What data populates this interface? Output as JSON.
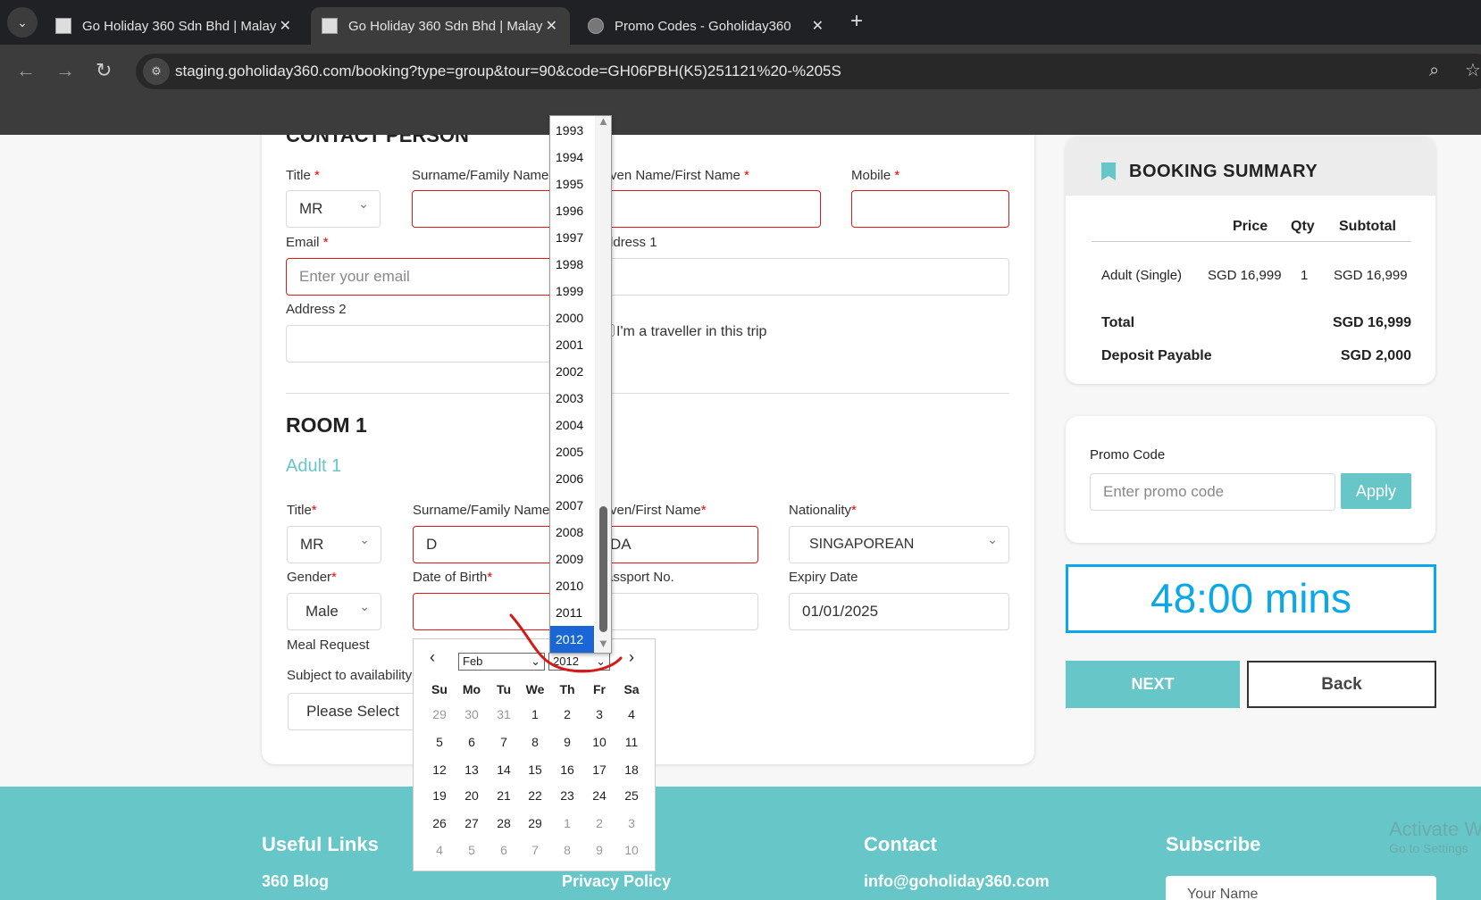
{
  "browser": {
    "tabs": [
      {
        "title": "Go Holiday 360 Sdn Bhd | Malay"
      },
      {
        "title": "Go Holiday 360 Sdn Bhd | Malay",
        "active": true
      },
      {
        "title": "Promo Codes - Goholiday360"
      }
    ],
    "url": "staging.goholiday360.com/booking?type=group&tour=90&code=GH06PBH(K5)251121%20-%205S"
  },
  "contact": {
    "heading": "CONTACT PERSON",
    "title_label": "Title",
    "title_value": "MR",
    "surname_label": "Surname/Family Name",
    "given_label": "Given Name/First Name",
    "mobile_label": "Mobile",
    "email_label": "Email",
    "email_placeholder": "Enter your email",
    "address1_label": "Address 1",
    "address2_label": "Address 2",
    "traveller_checkbox": "I'm a traveller in this trip",
    "required": "*"
  },
  "room": {
    "heading": "ROOM 1",
    "adult": "Adult 1",
    "title_label": "Title",
    "title_value": "MR",
    "surname_label": "Surname/Family Name",
    "surname_value": "D",
    "given_label": "Given/First Name",
    "given_value": "DA",
    "nationality_label": "Nationality",
    "nationality_value": "SINGAPOREAN",
    "gender_label": "Gender",
    "gender_value": "Male",
    "dob_label": "Date of Birth",
    "passport_label": "Passport No.",
    "expiry_label": "Expiry Date",
    "expiry_value": "01/01/2025",
    "meal_label": "Meal Request",
    "meal_note": "Subject to availability",
    "meal_value": "Please Select"
  },
  "datepicker": {
    "month": "Feb",
    "year": "2012",
    "weekdays": [
      "Su",
      "Mo",
      "Tu",
      "We",
      "Th",
      "Fr",
      "Sa"
    ],
    "weeks": [
      [
        "29",
        "30",
        "31",
        "1",
        "2",
        "3",
        "4"
      ],
      [
        "5",
        "6",
        "7",
        "8",
        "9",
        "10",
        "11"
      ],
      [
        "12",
        "13",
        "14",
        "15",
        "16",
        "17",
        "18"
      ],
      [
        "19",
        "20",
        "21",
        "22",
        "23",
        "24",
        "25"
      ],
      [
        "26",
        "27",
        "28",
        "29",
        "1",
        "2",
        "3"
      ],
      [
        "4",
        "5",
        "6",
        "7",
        "8",
        "9",
        "10"
      ]
    ],
    "year_options": [
      "1993",
      "1994",
      "1995",
      "1996",
      "1997",
      "1998",
      "1999",
      "2000",
      "2001",
      "2002",
      "2003",
      "2004",
      "2005",
      "2006",
      "2007",
      "2008",
      "2009",
      "2010",
      "2011",
      "2012"
    ],
    "selected_year": "2012"
  },
  "summary": {
    "title": "BOOKING SUMMARY",
    "cols": [
      "Price",
      "Qty",
      "Subtotal"
    ],
    "row": {
      "item": "Adult (Single)",
      "price": "SGD 16,999",
      "qty": "1",
      "subtotal": "SGD 16,999"
    },
    "total_label": "Total",
    "total": "SGD 16,999",
    "deposit_label": "Deposit Payable",
    "deposit": "SGD 2,000"
  },
  "promo": {
    "label": "Promo Code",
    "placeholder": "Enter promo code",
    "apply": "Apply"
  },
  "timer": "48:00 mins",
  "buttons": {
    "next": "NEXT",
    "back": "Back"
  },
  "footer": {
    "useful_links": "Useful Links",
    "blog": "360 Blog",
    "privacy": "Privacy Policy",
    "contact": "Contact",
    "email": "info@goholiday360.com",
    "subscribe": "Subscribe",
    "name_placeholder": "Your Name"
  },
  "watermark": {
    "line1": "Activate Windows",
    "line2": "Go to Settings"
  },
  "colors": {
    "teal": "#66c6c8",
    "timer_blue": "#0aa8e8",
    "error_red": "#e01818",
    "year_highlight": "#1a66d6"
  }
}
